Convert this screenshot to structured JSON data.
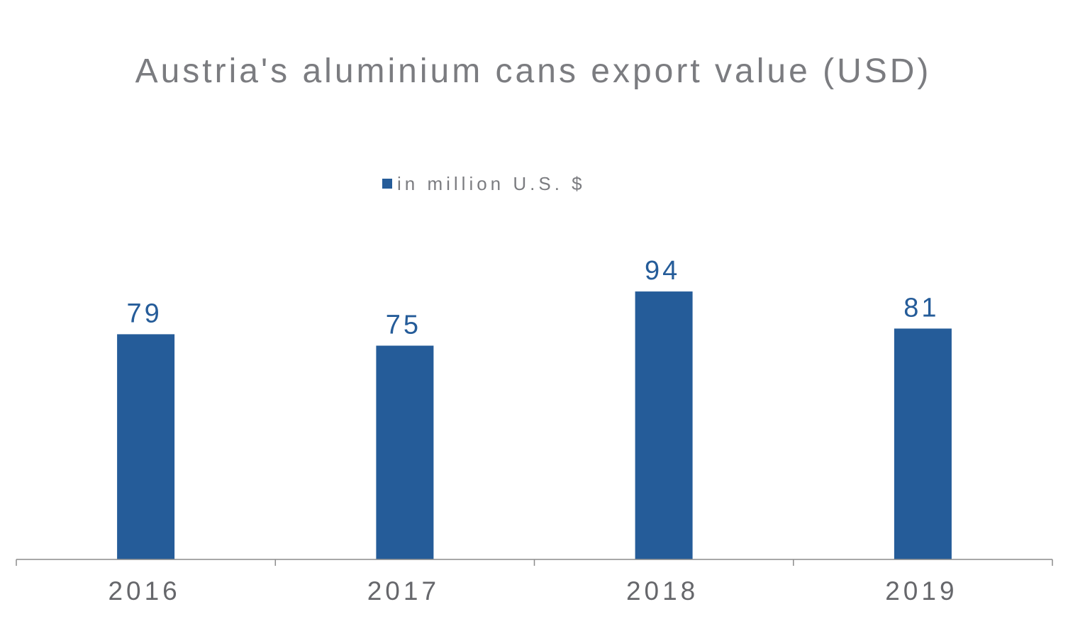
{
  "colors": {
    "bar": "#255c99",
    "axis": "#8c8c8c",
    "title_text": "#7b7c80",
    "tick_text": "#66676b",
    "data_label": "#255c99"
  },
  "chart_data": {
    "type": "bar",
    "title": "Austria's aluminium cans export value (USD)",
    "categories": [
      "2016",
      "2017",
      "2018",
      "2019"
    ],
    "series": [
      {
        "name": "in million U.S. $",
        "values": [
          79,
          75,
          94,
          81
        ]
      }
    ],
    "data_labels": [
      "79",
      "75",
      "94",
      "81"
    ],
    "xlabel": "",
    "ylabel": "",
    "ylim": [
      0,
      100
    ],
    "grid": false,
    "legend": "top-center"
  }
}
